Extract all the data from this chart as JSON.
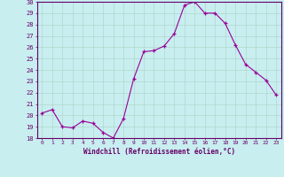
{
  "x": [
    0,
    1,
    2,
    3,
    4,
    5,
    6,
    7,
    8,
    9,
    10,
    11,
    12,
    13,
    14,
    15,
    16,
    17,
    18,
    19,
    20,
    21,
    22,
    23
  ],
  "y": [
    20.2,
    20.5,
    19.0,
    18.9,
    19.5,
    19.3,
    18.5,
    18.0,
    19.7,
    23.2,
    25.6,
    25.7,
    26.1,
    27.2,
    29.7,
    30.0,
    29.0,
    29.0,
    28.1,
    26.2,
    24.5,
    23.8,
    23.1,
    21.8
  ],
  "xlabel": "Windchill (Refroidissement éolien,°C)",
  "ylim": [
    18,
    30
  ],
  "xlim": [
    -0.5,
    23.5
  ],
  "yticks": [
    18,
    19,
    20,
    21,
    22,
    23,
    24,
    25,
    26,
    27,
    28,
    29,
    30
  ],
  "xticks": [
    0,
    1,
    2,
    3,
    4,
    5,
    6,
    7,
    8,
    9,
    10,
    11,
    12,
    13,
    14,
    15,
    16,
    17,
    18,
    19,
    20,
    21,
    22,
    23
  ],
  "line_color": "#990099",
  "marker_color": "#990099",
  "bg_color": "#c8eef0",
  "grid_color": "#b0d8cc",
  "spine_color": "#660066",
  "tick_color": "#660066",
  "label_color": "#660066",
  "font_name": "monospace"
}
